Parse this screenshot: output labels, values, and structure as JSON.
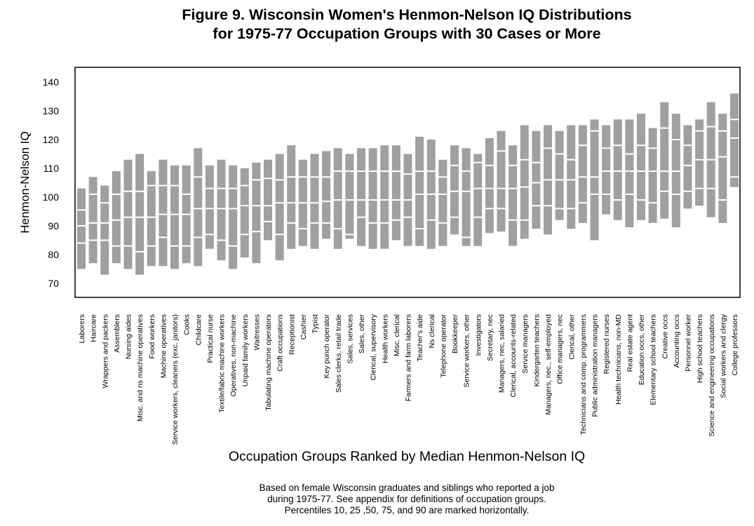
{
  "chart_data": {
    "type": "bar",
    "subtype": "percentile-range-bars",
    "title": [
      "Figure 9. Wisconsin Women's Henmon-Nelson IQ Distributions",
      "for 1975-77 Occupation Groups with 30 Cases or More"
    ],
    "xlabel": "Occupation Groups Ranked by Median Henmon-Nelson IQ",
    "ylabel": "Henmon-Nelson IQ",
    "ylim": [
      66,
      146
    ],
    "yticks": [
      70,
      80,
      90,
      100,
      110,
      120,
      130,
      140
    ],
    "grid": false,
    "legend": "none",
    "percentile_keys": [
      "p10",
      "p25",
      "p50",
      "p75",
      "p90"
    ],
    "bar_color": "#a0a0a0",
    "footnote": [
      "Based on female Wisconsin graduates and siblings who reported a job",
      "during 1975-77.  See appendix for definitions of occupation groups.",
      "Percentiles 10, 25 ,50, 75, and 90 are marked horizontally."
    ],
    "categories": [
      "Laborers",
      "Haircare",
      "Wrappers and packers",
      "Assemblers",
      "Nursing aides",
      "Misc. and ns machine operatives",
      "Food workers",
      "Machine operatives",
      "Service workers, cleaners (exc. janitors)",
      "Cooks",
      "Childcare",
      "Practical nurse",
      "Textile/fabric machine workers",
      "Operatives, non-machine",
      "Unpaid family workers",
      "Waitresses",
      "Tabulating machine operators",
      "Craft occupations",
      "Receptionist",
      "Cashier",
      "Typist",
      "Key punch operator",
      "Sales clerks, retail trade",
      "Sales, services",
      "Sales, other",
      "Clerical, supervisory",
      "Health workers",
      "Misc. clerical",
      "Farmers and farm laborers",
      "Teacher's aide",
      "Ns clerical",
      "Telephone operator",
      "Bookkeeper",
      "Service workers, other",
      "Investigators",
      "Secretary, nec",
      "Managers, nec, salaried",
      "Clerical, accounts-related",
      "Service managers",
      "Kindergarten teachers",
      "Managers, nec., self-employed",
      "Office managers, nec",
      "Clerical, other",
      "Technicians and comp. programmers",
      "Public administration managers",
      "Registered nurses",
      "Health technicians, non-MD",
      "Real estate agent",
      "Education occs, other",
      "Elementary school teachers",
      "Creative occs",
      "Accounting occs",
      "Personnel worker",
      "High school teachers",
      "Science and engineering occupations",
      "Social workers and clergy",
      "College professors"
    ],
    "series": [
      {
        "name": "p10",
        "values": [
          75,
          77,
          73,
          77,
          75,
          73,
          76,
          76,
          75,
          77,
          76,
          82,
          78,
          75,
          79,
          77,
          85,
          78,
          82,
          83,
          82,
          85.5,
          82,
          85.5,
          83,
          82,
          82,
          85,
          83,
          83,
          82,
          83,
          87,
          83,
          83,
          87.5,
          88,
          83,
          85.5,
          89,
          87,
          92,
          89,
          91,
          85,
          94,
          92,
          89.5,
          92,
          91,
          92.5,
          89.5,
          96,
          97,
          93,
          91,
          103.5
        ]
      },
      {
        "name": "p25",
        "values": [
          84,
          85,
          85,
          83,
          83,
          81,
          83,
          86,
          83,
          83,
          86,
          87,
          85,
          83,
          87,
          88,
          91.5,
          87,
          91,
          89,
          91,
          91,
          89,
          87,
          93,
          91,
          91,
          92,
          93,
          89,
          92,
          91,
          93,
          86,
          93,
          96,
          96,
          92,
          92,
          97,
          97,
          96,
          96,
          98,
          101,
          101,
          99,
          101,
          99,
          98,
          102,
          101,
          102,
          103,
          103,
          99,
          107
        ]
      },
      {
        "name": "p50",
        "values": [
          90,
          91,
          91,
          92,
          93,
          93,
          93,
          94,
          94,
          94,
          96,
          96,
          96,
          96,
          97,
          97,
          97,
          98,
          98,
          98,
          98,
          98.5,
          99,
          99,
          99,
          99,
          99,
          99,
          99,
          101,
          101,
          101,
          102,
          102,
          103,
          103,
          103,
          103,
          103.5,
          105,
          106,
          106,
          106,
          107,
          107,
          109,
          109,
          109,
          109,
          109,
          109,
          109,
          111,
          113,
          113,
          114,
          120.5
        ]
      },
      {
        "name": "p75",
        "values": [
          95.5,
          101,
          98,
          101,
          102,
          102,
          104,
          104,
          104,
          101,
          107,
          103,
          103,
          103,
          104,
          106,
          106.5,
          106,
          107,
          107,
          107,
          107,
          109,
          109,
          109,
          109,
          109,
          109,
          108,
          109,
          109,
          107,
          111,
          109,
          112,
          111,
          116,
          111,
          113,
          112,
          117,
          115,
          113,
          118,
          123,
          117,
          118,
          115,
          118,
          117,
          124,
          120,
          118,
          123,
          124.5,
          123,
          127
        ]
      },
      {
        "name": "p90",
        "values": [
          103,
          107,
          104,
          109,
          113,
          115,
          109,
          113,
          111,
          111,
          117,
          111,
          113,
          111,
          110,
          112,
          113,
          115,
          118,
          113,
          115,
          116,
          117,
          115,
          117,
          117,
          118,
          118,
          115,
          121,
          120,
          113,
          118,
          117,
          115,
          120.5,
          123,
          118,
          125,
          123,
          125,
          123,
          125,
          125,
          127,
          125,
          127,
          127,
          129,
          124,
          133,
          129,
          125,
          127,
          133,
          129,
          136
        ]
      }
    ]
  }
}
